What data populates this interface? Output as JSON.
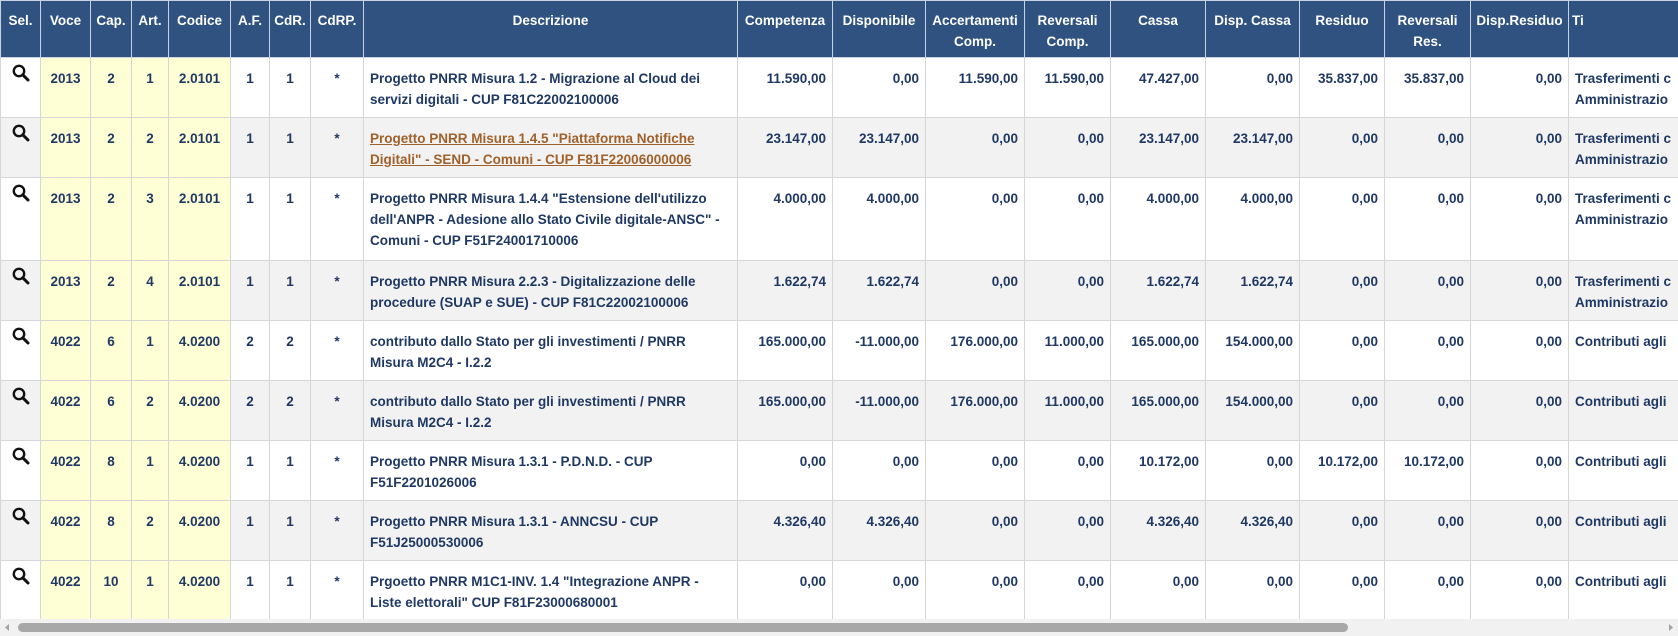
{
  "table": {
    "columns": [
      "Sel.",
      "Voce",
      "Cap.",
      "Art.",
      "Codice",
      "A.F.",
      "CdR.",
      "CdRP.",
      "Descrizione",
      "Competenza",
      "Disponibile",
      "Accertamenti Comp.",
      "Reversali Comp.",
      "Cassa",
      "Disp. Cassa",
      "Residuo",
      "Reversali Res.",
      "Disp.Residuo",
      "Ti"
    ],
    "rows": [
      [
        "2013",
        "2",
        "1",
        "2.0101",
        "1",
        "1",
        "*",
        "Progetto PNRR Misura 1.2 - Migrazione al Cloud dei servizi digitali - CUP F81C22002100006",
        "11.590,00",
        "0,00",
        "11.590,00",
        "11.590,00",
        "47.427,00",
        "0,00",
        "35.837,00",
        "35.837,00",
        "0,00",
        "Trasferimenti c\nAmministrazio"
      ],
      [
        "2013",
        "2",
        "2",
        "2.0101",
        "1",
        "1",
        "*",
        "Progetto PNRR Misura 1.4.5 \"Piattaforma Notifiche Digitali\" - SEND - Comuni - CUP F81F22006000006",
        "23.147,00",
        "23.147,00",
        "0,00",
        "0,00",
        "23.147,00",
        "23.147,00",
        "0,00",
        "0,00",
        "0,00",
        "Trasferimenti c\nAmministrazio"
      ],
      [
        "2013",
        "2",
        "3",
        "2.0101",
        "1",
        "1",
        "*",
        "Progetto PNRR Misura 1.4.4 \"Estensione dell'utilizzo dell'ANPR - Adesione allo Stato Civile digitale-ANSC\" - Comuni - CUP F51F24001710006",
        "4.000,00",
        "4.000,00",
        "0,00",
        "0,00",
        "4.000,00",
        "4.000,00",
        "0,00",
        "0,00",
        "0,00",
        "Trasferimenti c\nAmministrazio"
      ],
      [
        "2013",
        "2",
        "4",
        "2.0101",
        "1",
        "1",
        "*",
        "Progetto PNRR Misura 2.2.3 - Digitalizzazione delle procedure (SUAP e SUE) - CUP F81C22002100006",
        "1.622,74",
        "1.622,74",
        "0,00",
        "0,00",
        "1.622,74",
        "1.622,74",
        "0,00",
        "0,00",
        "0,00",
        "Trasferimenti c\nAmministrazio"
      ],
      [
        "4022",
        "6",
        "1",
        "4.0200",
        "2",
        "2",
        "*",
        "contributo dallo Stato per gli investimenti / PNRR Misura M2C4 - I.2.2",
        "165.000,00",
        "-11.000,00",
        "176.000,00",
        "11.000,00",
        "165.000,00",
        "154.000,00",
        "0,00",
        "0,00",
        "0,00",
        "Contributi agli"
      ],
      [
        "4022",
        "6",
        "2",
        "4.0200",
        "2",
        "2",
        "*",
        "contributo dallo Stato per gli investimenti / PNRR Misura M2C4 - I.2.2",
        "165.000,00",
        "-11.000,00",
        "176.000,00",
        "11.000,00",
        "165.000,00",
        "154.000,00",
        "0,00",
        "0,00",
        "0,00",
        "Contributi agli"
      ],
      [
        "4022",
        "8",
        "1",
        "4.0200",
        "1",
        "1",
        "*",
        "Progetto PNRR Misura 1.3.1 - P.D.N.D. - CUP F51F2201026006",
        "0,00",
        "0,00",
        "0,00",
        "0,00",
        "10.172,00",
        "0,00",
        "10.172,00",
        "10.172,00",
        "0,00",
        "Contributi agli"
      ],
      [
        "4022",
        "8",
        "2",
        "4.0200",
        "1",
        "1",
        "*",
        "Progetto PNRR Misura 1.3.1 - ANNCSU - CUP F51J25000530006",
        "4.326,40",
        "4.326,40",
        "0,00",
        "0,00",
        "4.326,40",
        "4.326,40",
        "0,00",
        "0,00",
        "0,00",
        "Contributi agli"
      ],
      [
        "4022",
        "10",
        "1",
        "4.0200",
        "1",
        "1",
        "*",
        "Prgoetto PNRR M1C1-INV. 1.4 \"Integrazione ANPR - Liste elettorali\" CUP F81F23000680001",
        "0,00",
        "0,00",
        "0,00",
        "0,00",
        "0,00",
        "0,00",
        "0,00",
        "0,00",
        "0,00",
        "Contributi agli"
      ]
    ]
  }
}
